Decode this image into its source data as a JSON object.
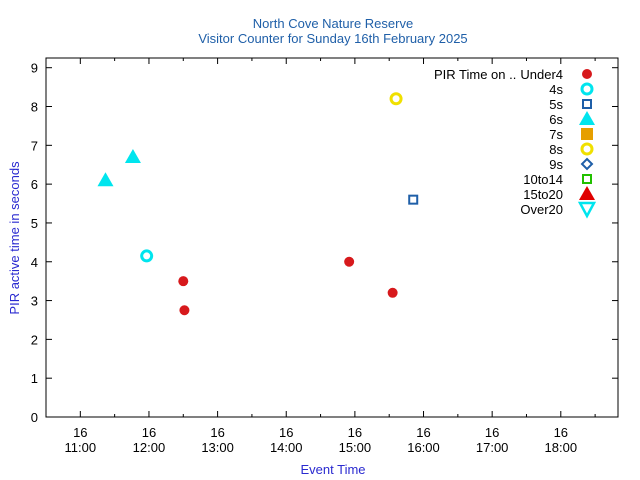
{
  "chart_data": {
    "type": "scatter",
    "title": "North Cove Nature Reserve",
    "subtitle": "Visitor Counter for Sunday 16th February 2025",
    "xlabel": "Event Time",
    "ylabel": "PIR active time in seconds",
    "xlim": [
      "10:30",
      "18:50"
    ],
    "ylim": [
      0,
      9.25
    ],
    "x_ticks": [
      {
        "day": "16",
        "time": "11:00"
      },
      {
        "day": "16",
        "time": "12:00"
      },
      {
        "day": "16",
        "time": "13:00"
      },
      {
        "day": "16",
        "time": "14:00"
      },
      {
        "day": "16",
        "time": "15:00"
      },
      {
        "day": "16",
        "time": "16:00"
      },
      {
        "day": "16",
        "time": "17:00"
      },
      {
        "day": "16",
        "time": "18:00"
      }
    ],
    "y_ticks": [
      "0",
      "1",
      "2",
      "3",
      "4",
      "5",
      "6",
      "7",
      "8",
      "9"
    ],
    "legend_position": "top-right",
    "legend_title": "PIR Time on ..",
    "series": [
      {
        "name": "Under4",
        "marker": "filled-circle",
        "color": "#d7191c",
        "points": [
          {
            "x": "12:30",
            "y": 3.5
          },
          {
            "x": "12:31",
            "y": 2.75
          },
          {
            "x": "14:55",
            "y": 4.0
          },
          {
            "x": "15:33",
            "y": 3.2
          }
        ]
      },
      {
        "name": "4s",
        "marker": "open-circle",
        "color": "#00e5ee",
        "points": [
          {
            "x": "11:58",
            "y": 4.15
          }
        ]
      },
      {
        "name": "5s",
        "marker": "open-square",
        "color": "#1f5fa8",
        "points": [
          {
            "x": "15:51",
            "y": 5.6
          }
        ]
      },
      {
        "name": "6s",
        "marker": "filled-triangle",
        "color": "#00e5ee",
        "points": [
          {
            "x": "11:22",
            "y": 6.1
          },
          {
            "x": "11:46",
            "y": 6.7
          }
        ]
      },
      {
        "name": "7s",
        "marker": "filled-square",
        "color": "#e69f00",
        "points": []
      },
      {
        "name": "8s",
        "marker": "open-circle",
        "color": "#f0e000",
        "points": [
          {
            "x": "15:36",
            "y": 8.2
          }
        ]
      },
      {
        "name": "9s",
        "marker": "open-diamond",
        "color": "#1f5fa8",
        "points": []
      },
      {
        "name": "10to14",
        "marker": "open-square",
        "color": "#22c000",
        "points": []
      },
      {
        "name": "15to20",
        "marker": "filled-triangle",
        "color": "#e00000",
        "points": []
      },
      {
        "name": "Over20",
        "marker": "open-triangle-down",
        "color": "#00e5ee",
        "points": []
      }
    ]
  }
}
